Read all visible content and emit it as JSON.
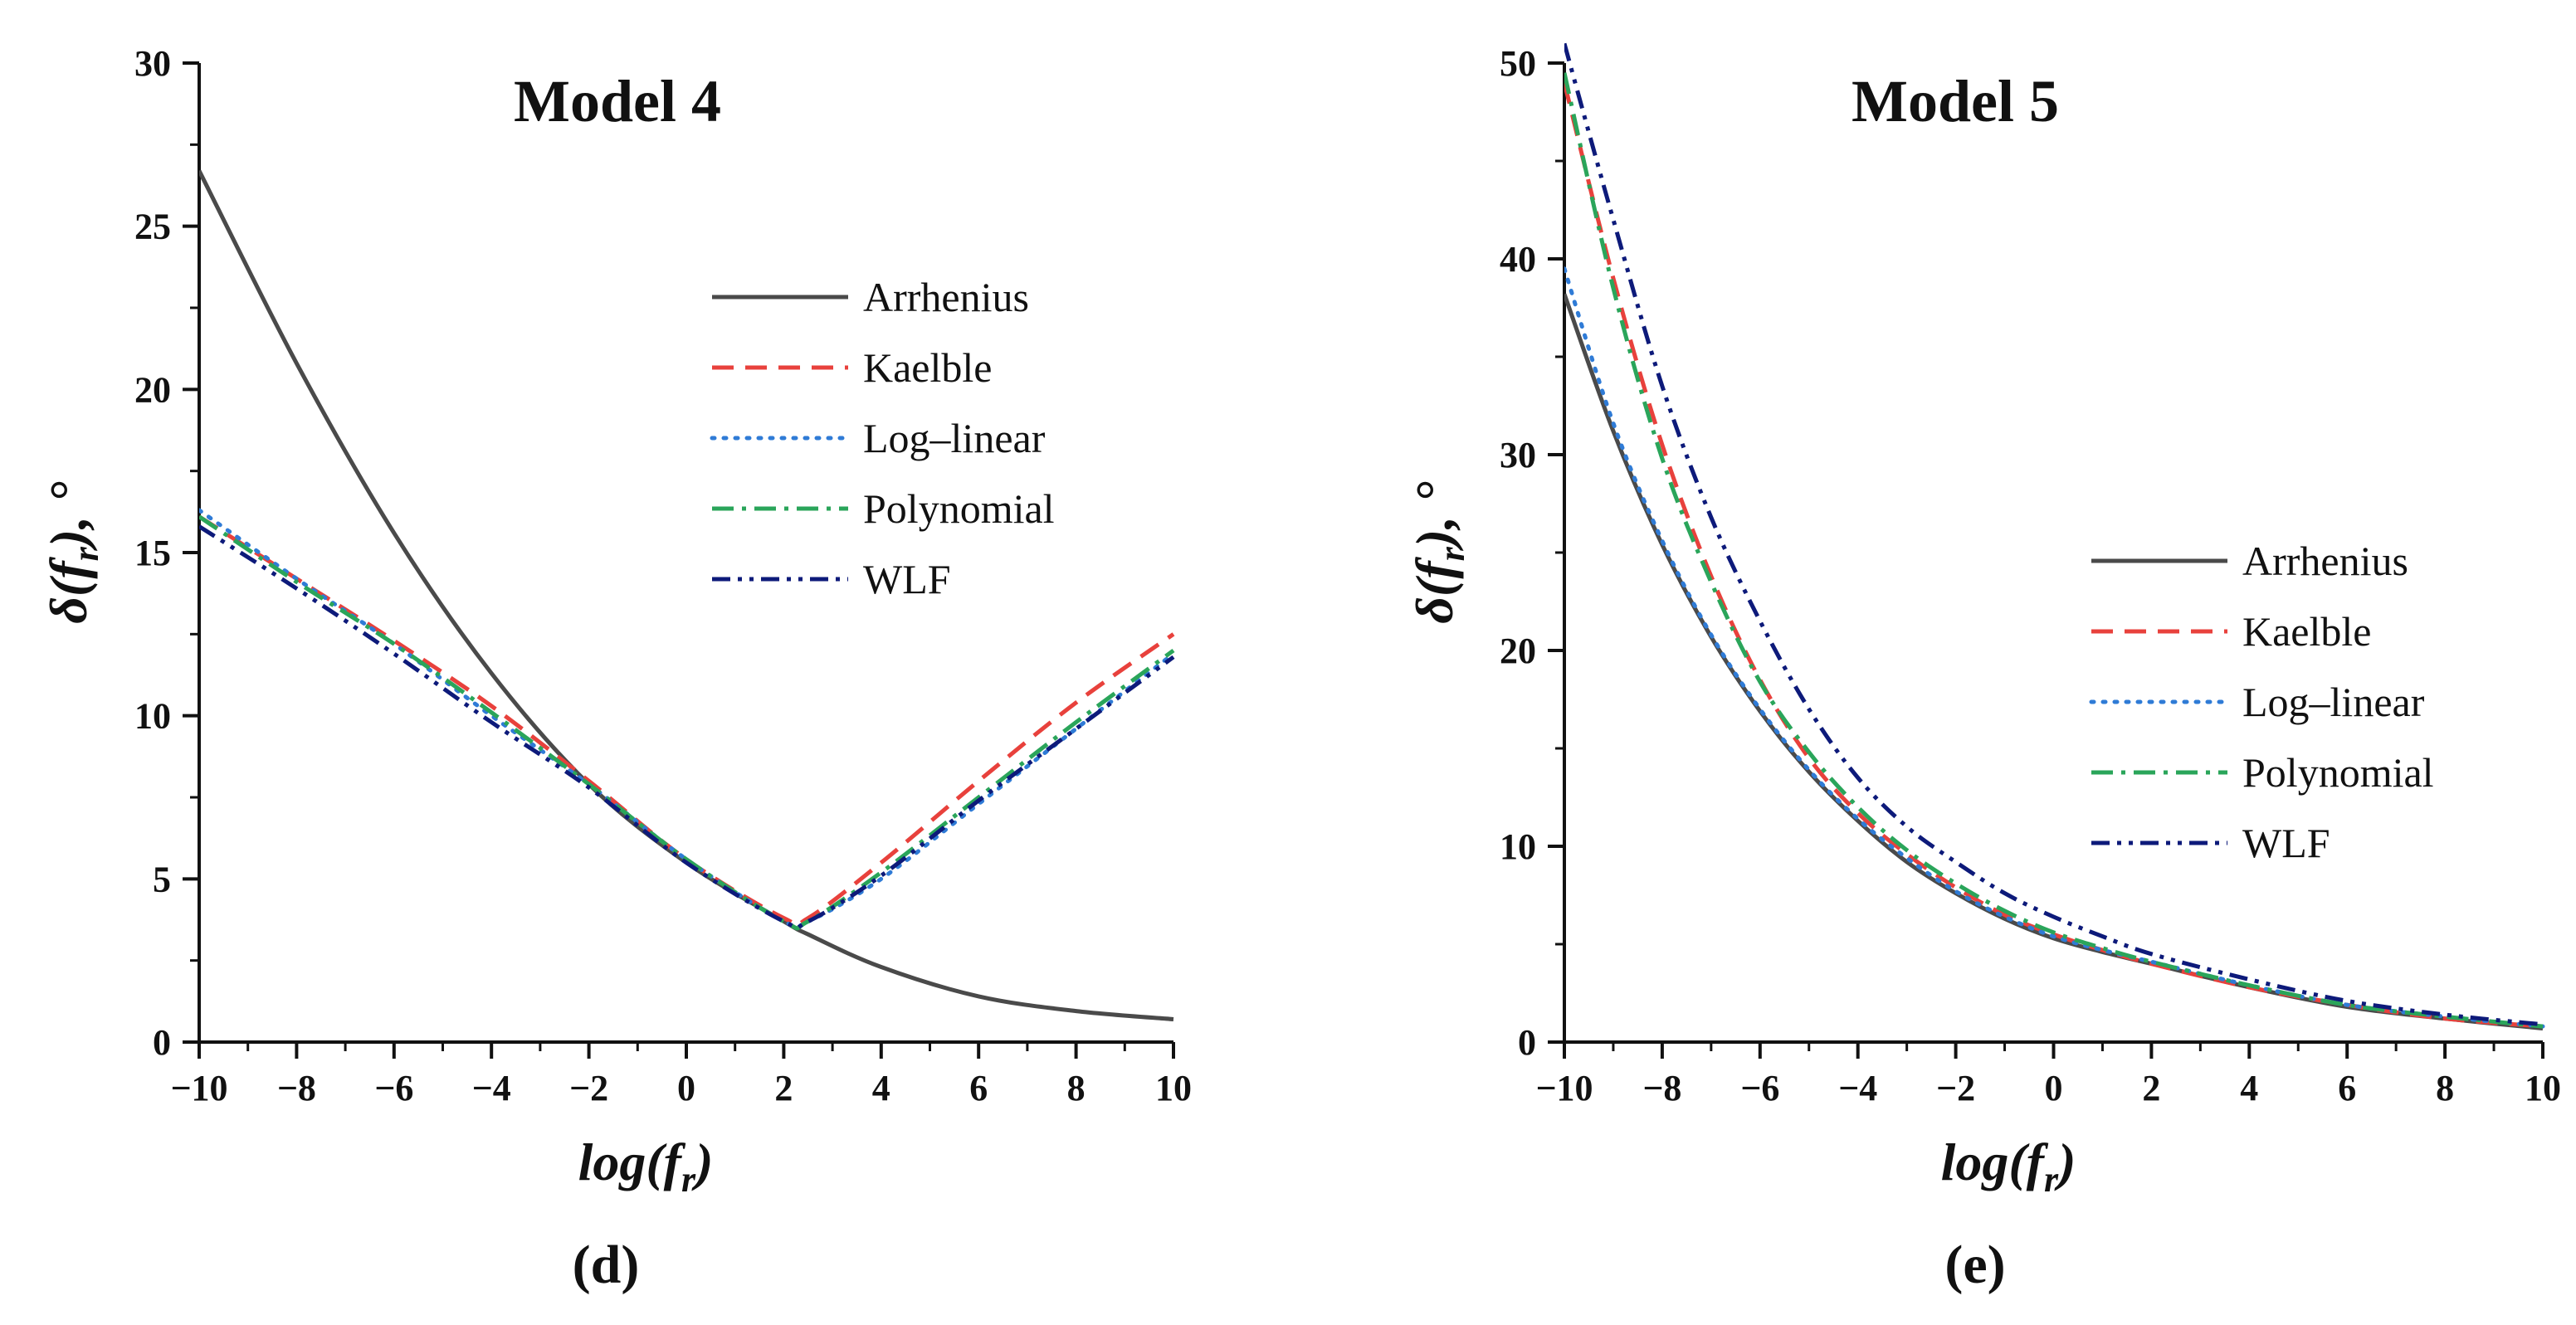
{
  "chart_data": [
    {
      "type": "line",
      "title": "Model 4",
      "xlabel": "log(f_r)",
      "ylabel": "δ(f_r), °",
      "panel_label": "(d)",
      "xlim": [
        -10,
        10
      ],
      "ylim": [
        0,
        30
      ],
      "x_ticks": [
        -10,
        -8,
        -6,
        -4,
        -2,
        0,
        2,
        4,
        6,
        8,
        10
      ],
      "y_ticks": [
        0,
        5,
        10,
        15,
        20,
        25,
        30
      ],
      "x_tick_labels": [
        "−10",
        "−8",
        "−6",
        "−4",
        "−2",
        "0",
        "2",
        "4",
        "6",
        "8",
        "10"
      ],
      "y_tick_labels": [
        "0",
        "5",
        "10",
        "15",
        "20",
        "25",
        "30"
      ],
      "legend_position": "upper-right",
      "x": [
        -10,
        -8,
        -6,
        -4,
        -2,
        0,
        2,
        2.5,
        4,
        6,
        8,
        10
      ],
      "series": [
        {
          "name": "Arrhenius",
          "color": "#4a4a4a",
          "dash": "solid",
          "values": [
            26.7,
            20.8,
            15.6,
            11.3,
            7.9,
            5.5,
            3.7,
            3.3,
            2.3,
            1.4,
            0.95,
            0.7
          ]
        },
        {
          "name": "Kaelble",
          "color": "#e8413c",
          "dash": "dash",
          "values": [
            16.1,
            14.2,
            12.3,
            10.3,
            8.0,
            5.6,
            3.8,
            3.8,
            5.5,
            8.0,
            10.4,
            12.5
          ]
        },
        {
          "name": "Log–linear",
          "color": "#2f7bd6",
          "dash": "dot",
          "values": [
            16.3,
            14.2,
            12.2,
            10.0,
            7.9,
            5.6,
            3.7,
            3.7,
            5.0,
            7.3,
            9.6,
            11.9
          ]
        },
        {
          "name": "Polynomial",
          "color": "#2aa55a",
          "dash": "dashdot",
          "values": [
            16.1,
            14.1,
            12.2,
            10.1,
            7.9,
            5.6,
            3.7,
            3.7,
            5.2,
            7.5,
            9.8,
            12.0
          ]
        },
        {
          "name": "WLF",
          "color": "#0d1a7a",
          "dash": "dashdotdot",
          "values": [
            15.8,
            13.9,
            11.9,
            9.8,
            7.8,
            5.5,
            3.7,
            3.7,
            5.1,
            7.4,
            9.6,
            11.8
          ]
        }
      ]
    },
    {
      "type": "line",
      "title": "Model 5",
      "xlabel": "log(f_r)",
      "ylabel": "δ(f_r), °",
      "panel_label": "(e)",
      "xlim": [
        -10,
        10
      ],
      "ylim": [
        0,
        50
      ],
      "x_ticks": [
        -10,
        -8,
        -6,
        -4,
        -2,
        0,
        2,
        4,
        6,
        8,
        10
      ],
      "y_ticks": [
        0,
        10,
        20,
        30,
        40,
        50
      ],
      "x_tick_labels": [
        "−10",
        "−8",
        "−6",
        "−4",
        "−2",
        "0",
        "2",
        "4",
        "6",
        "8",
        "10"
      ],
      "y_tick_labels": [
        "0",
        "10",
        "20",
        "30",
        "40",
        "50"
      ],
      "legend_position": "right",
      "x": [
        -10,
        -9,
        -8,
        -7,
        -6,
        -5,
        -4,
        -3,
        -2,
        -1,
        0,
        1,
        2,
        4,
        6,
        8,
        10
      ],
      "series": [
        {
          "name": "Arrhenius",
          "color": "#4a4a4a",
          "dash": "solid",
          "values": [
            38.2,
            31.2,
            25.4,
            20.7,
            16.9,
            13.8,
            11.3,
            9.2,
            7.6,
            6.3,
            5.3,
            4.6,
            4.0,
            2.8,
            1.8,
            1.2,
            0.7
          ]
        },
        {
          "name": "Kaelble",
          "color": "#e8413c",
          "dash": "dash",
          "values": [
            49.0,
            39.0,
            30.5,
            23.8,
            18.5,
            14.5,
            11.7,
            9.6,
            7.9,
            6.5,
            5.5,
            4.7,
            4.0,
            2.8,
            1.9,
            1.2,
            0.8
          ]
        },
        {
          "name": "Log–linear",
          "color": "#2f7bd6",
          "dash": "dot",
          "values": [
            39.5,
            31.6,
            25.6,
            20.8,
            17.0,
            13.9,
            11.4,
            9.4,
            7.7,
            6.4,
            5.4,
            4.7,
            4.1,
            2.9,
            1.9,
            1.3,
            0.8
          ]
        },
        {
          "name": "Polynomial",
          "color": "#2aa55a",
          "dash": "dashdot",
          "values": [
            49.5,
            38.5,
            29.8,
            23.5,
            18.4,
            14.8,
            12.0,
            9.8,
            8.1,
            6.7,
            5.6,
            4.8,
            4.1,
            2.9,
            1.9,
            1.3,
            0.8
          ]
        },
        {
          "name": "WLF",
          "color": "#0d1a7a",
          "dash": "dashdotdot",
          "values": [
            51.0,
            42.0,
            33.5,
            26.8,
            21.5,
            17.0,
            13.5,
            11.0,
            9.2,
            7.6,
            6.4,
            5.4,
            4.5,
            3.2,
            2.1,
            1.4,
            0.9
          ]
        }
      ]
    }
  ]
}
